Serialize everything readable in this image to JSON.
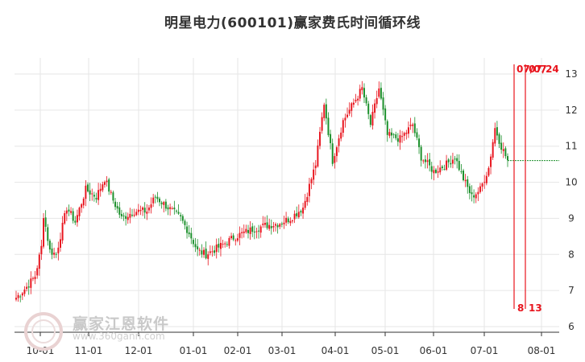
{
  "chart_data": {
    "type": "candlestick",
    "title": "明星电力(600101)赢家费氏时间循环线",
    "x_tick_labels": [
      "10-01",
      "11-01",
      "12-01",
      "01-01",
      "02-01",
      "03-01",
      "04-01",
      "05-01",
      "06-01",
      "07-01",
      "08-01"
    ],
    "y_tick_labels": [
      "6",
      "7",
      "8",
      "9",
      "10",
      "11",
      "12",
      "13"
    ],
    "ylim": [
      6,
      13.3
    ],
    "grid": true,
    "colors": {
      "up": "#e8141d",
      "down": "#1a8f2a",
      "cycle_line": "#e8141d",
      "current_price_line": "#1a8f2a"
    },
    "price_anchors": [
      {
        "t": 0,
        "v": 6.8
      },
      {
        "t": 5,
        "v": 7.1
      },
      {
        "t": 9,
        "v": 7.4
      },
      {
        "t": 12,
        "v": 8.2
      },
      {
        "t": 13,
        "v": 9.1
      },
      {
        "t": 16,
        "v": 8.1
      },
      {
        "t": 19,
        "v": 8.0
      },
      {
        "t": 24,
        "v": 9.3
      },
      {
        "t": 28,
        "v": 8.9
      },
      {
        "t": 33,
        "v": 9.8
      },
      {
        "t": 38,
        "v": 9.6
      },
      {
        "t": 42,
        "v": 10.1
      },
      {
        "t": 46,
        "v": 9.5
      },
      {
        "t": 50,
        "v": 9.0
      },
      {
        "t": 56,
        "v": 9.2
      },
      {
        "t": 62,
        "v": 9.2
      },
      {
        "t": 66,
        "v": 9.6
      },
      {
        "t": 72,
        "v": 9.3
      },
      {
        "t": 78,
        "v": 9.0
      },
      {
        "t": 82,
        "v": 8.6
      },
      {
        "t": 86,
        "v": 8.1
      },
      {
        "t": 90,
        "v": 8.0
      },
      {
        "t": 96,
        "v": 8.2
      },
      {
        "t": 104,
        "v": 8.5
      },
      {
        "t": 112,
        "v": 8.7
      },
      {
        "t": 118,
        "v": 8.8
      },
      {
        "t": 124,
        "v": 8.85
      },
      {
        "t": 130,
        "v": 9.0
      },
      {
        "t": 136,
        "v": 9.3
      },
      {
        "t": 142,
        "v": 10.5
      },
      {
        "t": 146,
        "v": 12.2
      },
      {
        "t": 150,
        "v": 10.6
      },
      {
        "t": 155,
        "v": 11.7
      },
      {
        "t": 160,
        "v": 12.2
      },
      {
        "t": 164,
        "v": 12.6
      },
      {
        "t": 168,
        "v": 11.6
      },
      {
        "t": 172,
        "v": 12.6
      },
      {
        "t": 176,
        "v": 11.3
      },
      {
        "t": 182,
        "v": 11.2
      },
      {
        "t": 188,
        "v": 11.6
      },
      {
        "t": 192,
        "v": 10.7
      },
      {
        "t": 198,
        "v": 10.3
      },
      {
        "t": 204,
        "v": 10.5
      },
      {
        "t": 208,
        "v": 10.7
      },
      {
        "t": 212,
        "v": 10.1
      },
      {
        "t": 216,
        "v": 9.6
      },
      {
        "t": 220,
        "v": 9.8
      },
      {
        "t": 224,
        "v": 10.4
      },
      {
        "t": 227,
        "v": 11.5
      },
      {
        "t": 230,
        "v": 11.0
      },
      {
        "t": 233,
        "v": 10.6
      }
    ],
    "n_points": 234,
    "current_price": 10.6,
    "cycle_lines": [
      {
        "label_top": "07/07",
        "label_bottom": "8"
      },
      {
        "label_top": "07/24",
        "label_bottom": "13"
      }
    ]
  },
  "watermark": {
    "brand": "赢家江恩软件",
    "url": "www.360gann.com",
    "logo_text": "赢家"
  }
}
